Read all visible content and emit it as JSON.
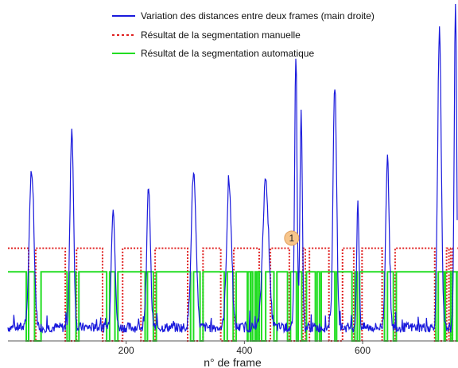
{
  "chart_data": {
    "type": "line",
    "title": "",
    "xlabel": "n° de frame",
    "ylabel": "",
    "xlim": [
      0,
      760
    ],
    "ylim": [
      0,
      1
    ],
    "grid": false,
    "legend_position": "top-right",
    "x_ticks": [
      200,
      400,
      600
    ],
    "series": [
      {
        "name": "Variation des distances entre deux frames (main droite)",
        "color": "#1a1adc",
        "style": "solid",
        "peaks": [
          {
            "x": 40,
            "y": 0.46,
            "w": 4
          },
          {
            "x": 108,
            "y": 0.59,
            "w": 3
          },
          {
            "x": 178,
            "y": 0.36,
            "w": 3
          },
          {
            "x": 238,
            "y": 0.42,
            "w": 3
          },
          {
            "x": 314,
            "y": 0.46,
            "w": 4
          },
          {
            "x": 374,
            "y": 0.43,
            "w": 4
          },
          {
            "x": 436,
            "y": 0.44,
            "w": 5
          },
          {
            "x": 487,
            "y": 0.81,
            "w": 2
          },
          {
            "x": 496,
            "y": 0.65,
            "w": 2
          },
          {
            "x": 553,
            "y": 0.72,
            "w": 3
          },
          {
            "x": 592,
            "y": 0.37,
            "w": 2
          },
          {
            "x": 642,
            "y": 0.5,
            "w": 3
          },
          {
            "x": 730,
            "y": 0.88,
            "w": 3
          },
          {
            "x": 757,
            "y": 0.97,
            "w": 2
          }
        ],
        "baseline": 0.04
      },
      {
        "name": "Résultat de la segmentation manuelle",
        "color": "#e02020",
        "style": "dotted",
        "high": 0.275,
        "low": 0.0,
        "low_intervals": [
          [
            35,
            47
          ],
          [
            97,
            116
          ],
          [
            160,
            194
          ],
          [
            225,
            249
          ],
          [
            304,
            330
          ],
          [
            360,
            382
          ],
          [
            425,
            444
          ],
          [
            476,
            499
          ],
          [
            503,
            510
          ],
          [
            543,
            566
          ],
          [
            585,
            599
          ],
          [
            633,
            655
          ],
          [
            722,
            742
          ],
          [
            746,
            749
          ],
          [
            752,
            765
          ]
        ]
      },
      {
        "name": "Résultat de la segmentation automatique",
        "color": "#22dd22",
        "style": "solid",
        "high": 0.205,
        "low": 0.0,
        "low_intervals": [
          [
            31,
            35
          ],
          [
            45,
            56
          ],
          [
            100,
            104
          ],
          [
            115,
            120
          ],
          [
            167,
            172
          ],
          [
            181,
            186
          ],
          [
            232,
            236
          ],
          [
            246,
            251
          ],
          [
            309,
            314
          ],
          [
            325,
            330
          ],
          [
            366,
            371
          ],
          [
            381,
            386
          ],
          [
            405,
            406
          ],
          [
            410,
            411
          ],
          [
            414,
            418
          ],
          [
            420,
            421
          ],
          [
            424,
            425
          ],
          [
            429,
            436
          ],
          [
            450,
            455
          ],
          [
            473,
            478
          ],
          [
            488,
            491
          ],
          [
            497,
            505
          ],
          [
            520,
            523
          ],
          [
            527,
            530
          ],
          [
            553,
            556
          ],
          [
            582,
            587
          ],
          [
            591,
            595
          ],
          [
            637,
            642
          ],
          [
            652,
            657
          ],
          [
            724,
            728
          ],
          [
            738,
            740
          ],
          [
            749,
            752
          ],
          [
            759,
            762
          ]
        ]
      }
    ],
    "annotations": [
      {
        "label": "1",
        "x": 480,
        "y": 0.305,
        "color": "#f7c58b"
      }
    ]
  }
}
